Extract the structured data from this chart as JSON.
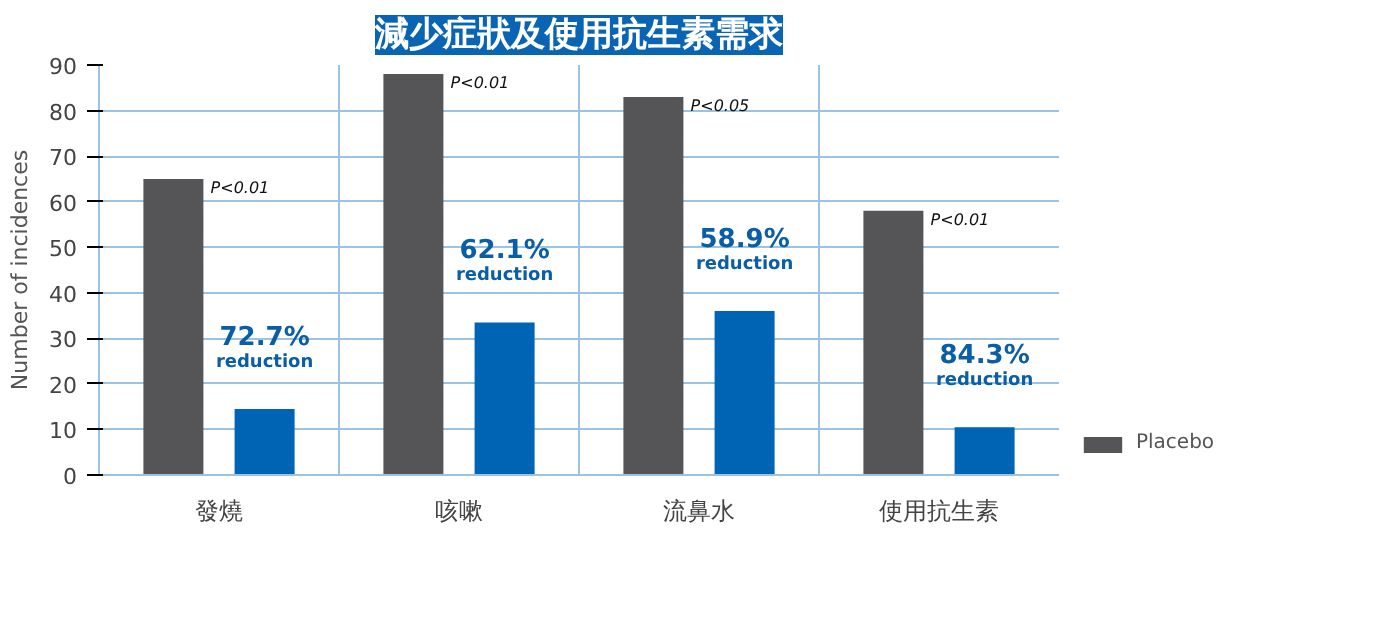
{
  "chart_data": {
    "type": "bar",
    "title": "減少症狀及使用抗生素需求",
    "ylabel": "Number of incidences",
    "categories": [
      "發燒",
      "咳嗽",
      "流鼻水",
      "使用抗生素"
    ],
    "series": [
      {
        "name": "Placebo",
        "color": "#555558",
        "values": [
          65,
          88,
          83,
          58
        ]
      },
      {
        "color": "#0064b4",
        "values": [
          14.5,
          33.5,
          36,
          10.5
        ]
      }
    ],
    "ylim": [
      0,
      90
    ],
    "yticks": [
      0,
      10,
      20,
      30,
      40,
      50,
      60,
      70,
      80,
      90
    ],
    "grid": true,
    "legend": "right",
    "annotations": [
      "P<0.01",
      "P<0.01",
      "P<0.05",
      "P<0.01",
      "72.7%\nreduction",
      "62.1%\nreduction",
      "58.9%\nreduction",
      "84.3%\nreduction"
    ]
  }
}
